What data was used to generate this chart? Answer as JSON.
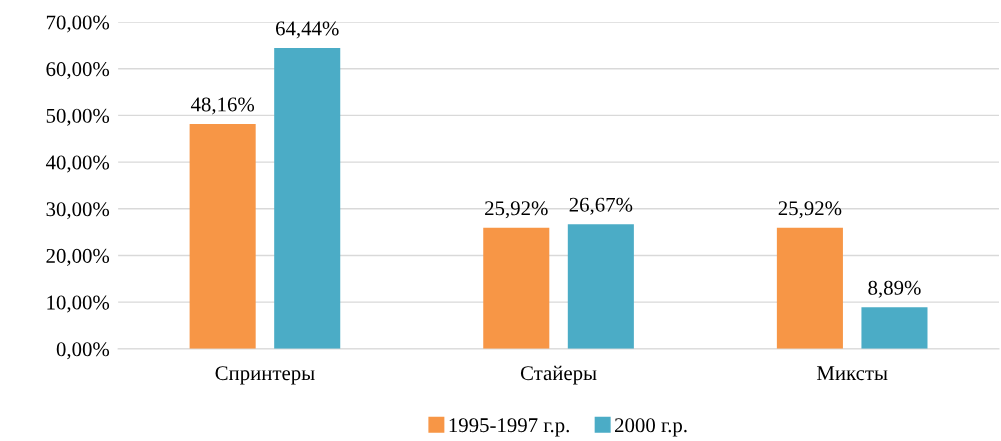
{
  "chart_data": {
    "type": "bar",
    "categories": [
      "Спринтеры",
      "Стайеры",
      "Миксты"
    ],
    "series": [
      {
        "name": "1995-1997 г.р.",
        "color": "#f79646",
        "values": [
          48.16,
          25.92,
          25.92
        ],
        "value_labels": [
          "48,16%",
          "25,92%",
          "25,92%"
        ]
      },
      {
        "name": "2000 г.р.",
        "color": "#4bacc6",
        "values": [
          64.44,
          26.67,
          8.89
        ],
        "value_labels": [
          "64,44%",
          "26,67%",
          "8,89%"
        ]
      }
    ],
    "ylim": [
      0,
      70
    ],
    "yticks": [
      {
        "value": 0,
        "label": "0,00%"
      },
      {
        "value": 10,
        "label": "10,00%"
      },
      {
        "value": 20,
        "label": "20,00%"
      },
      {
        "value": 30,
        "label": "30,00%"
      },
      {
        "value": 40,
        "label": "40,00%"
      },
      {
        "value": 50,
        "label": "50,00%"
      },
      {
        "value": 60,
        "label": "60,00%"
      },
      {
        "value": 70,
        "label": "70,00%"
      }
    ],
    "grid": "y",
    "legend": "bottom"
  }
}
